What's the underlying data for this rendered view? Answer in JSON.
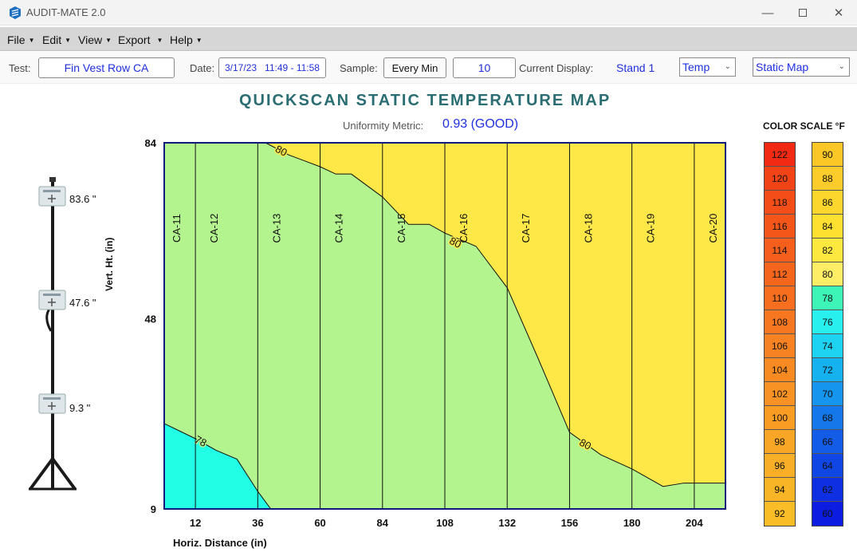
{
  "window": {
    "title": "AUDIT-MATE 2.0"
  },
  "menu": [
    {
      "label": "File"
    },
    {
      "label": "Edit"
    },
    {
      "label": "View"
    },
    {
      "label": "Export"
    },
    {
      "label": "Help"
    }
  ],
  "toolbar": {
    "test_label": "Test:",
    "test_value": "Fin Vest Row CA",
    "date_label": "Date:",
    "date_value": "3/17/23   11:49 - 11:58",
    "sample_label": "Sample:",
    "sample_value": "Every Min",
    "count_value": "10",
    "display_label": "Current Display:",
    "display_value": "Stand 1",
    "measure_value": "Temp",
    "mode_value": "Static Map"
  },
  "map": {
    "title": "QUICKSCAN STATIC TEMPERATURE MAP",
    "uniformity_label": "Uniformity Metric:",
    "uniformity_value": "0.93 (GOOD)"
  },
  "stand": {
    "sensors": [
      {
        "label": "83.6 \""
      },
      {
        "label": "47.6 \""
      },
      {
        "label": "9.3 \""
      }
    ]
  },
  "chart_data": {
    "type": "heatmap",
    "title": "QUICKSCAN STATIC TEMPERATURE MAP",
    "xlabel": "Horiz. Distance (in)",
    "ylabel": "Vert. Ht. (in)",
    "x_ticks": [
      12,
      36,
      60,
      84,
      108,
      132,
      156,
      180,
      204
    ],
    "y_ticks": [
      9,
      48,
      84
    ],
    "xlim": [
      0,
      216
    ],
    "ylim": [
      9,
      84
    ],
    "columns": [
      {
        "label": "CA-11",
        "x": 0
      },
      {
        "label": "CA-12",
        "x": 12
      },
      {
        "label": "CA-13",
        "x": 36
      },
      {
        "label": "CA-14",
        "x": 60
      },
      {
        "label": "CA-15",
        "x": 84
      },
      {
        "label": "CA-16",
        "x": 108
      },
      {
        "label": "CA-17",
        "x": 132
      },
      {
        "label": "CA-18",
        "x": 156
      },
      {
        "label": "CA-19",
        "x": 180
      },
      {
        "label": "CA-20",
        "x": 204
      }
    ],
    "contours": [
      {
        "level": "80",
        "points": [
          [
            39,
            84
          ],
          [
            48,
            81.5
          ],
          [
            60,
            79.1
          ],
          [
            66,
            77.6
          ],
          [
            72,
            77.6
          ],
          [
            84,
            72.9
          ],
          [
            94,
            67.3
          ],
          [
            102,
            67.3
          ],
          [
            108,
            65.5
          ],
          [
            120,
            62.8
          ],
          [
            132,
            54.3
          ],
          [
            144,
            39.7
          ],
          [
            156,
            24.7
          ],
          [
            168,
            20.1
          ],
          [
            180,
            17.2
          ],
          [
            192,
            13.6
          ],
          [
            200,
            14.3
          ],
          [
            216,
            14.3
          ]
        ],
        "labels": [
          [
            45,
            82.3
          ],
          [
            112,
            63.5
          ],
          [
            162,
            22.2
          ]
        ]
      },
      {
        "level": "78",
        "points": [
          [
            0,
            26.5
          ],
          [
            12,
            23.4
          ],
          [
            20,
            21
          ],
          [
            28,
            19.2
          ],
          [
            36,
            12.6
          ],
          [
            41,
            9
          ]
        ],
        "labels": [
          [
            14,
            22.8
          ]
        ]
      }
    ],
    "regions": [
      {
        "range": "78-80",
        "color": "#b3f48e"
      },
      {
        "range": "80-82",
        "color": "#fde848"
      },
      {
        "range": "76-78",
        "color": "#22fde6"
      }
    ]
  },
  "color_scale": {
    "title": "COLOR SCALE  °F",
    "left": [
      {
        "value": "122",
        "color": "#f22a14"
      },
      {
        "value": "120",
        "color": "#f24316"
      },
      {
        "value": "118",
        "color": "#f44d18"
      },
      {
        "value": "116",
        "color": "#f4561a"
      },
      {
        "value": "114",
        "color": "#f55e1b"
      },
      {
        "value": "112",
        "color": "#f5651c"
      },
      {
        "value": "110",
        "color": "#f66e1e"
      },
      {
        "value": "108",
        "color": "#f6771f"
      },
      {
        "value": "106",
        "color": "#f78221"
      },
      {
        "value": "104",
        "color": "#f78b22"
      },
      {
        "value": "102",
        "color": "#f89224"
      },
      {
        "value": "100",
        "color": "#f89c24"
      },
      {
        "value": "98",
        "color": "#f8a625"
      },
      {
        "value": "96",
        "color": "#f8ae26"
      },
      {
        "value": "94",
        "color": "#f8b627"
      },
      {
        "value": "92",
        "color": "#f9bd28"
      }
    ],
    "right": [
      {
        "value": "90",
        "color": "#fbc726"
      },
      {
        "value": "88",
        "color": "#fccc2a"
      },
      {
        "value": "86",
        "color": "#fcd62c"
      },
      {
        "value": "84",
        "color": "#fde030"
      },
      {
        "value": "82",
        "color": "#fde840"
      },
      {
        "value": "80",
        "color": "#fdee66"
      },
      {
        "value": "78",
        "color": "#3ef5b8"
      },
      {
        "value": "76",
        "color": "#28f0ee"
      },
      {
        "value": "74",
        "color": "#1ed2f2"
      },
      {
        "value": "72",
        "color": "#16b2f0"
      },
      {
        "value": "70",
        "color": "#1595ee"
      },
      {
        "value": "68",
        "color": "#1478ea"
      },
      {
        "value": "66",
        "color": "#125ce8"
      },
      {
        "value": "64",
        "color": "#1046e4"
      },
      {
        "value": "62",
        "color": "#0e30e2"
      },
      {
        "value": "60",
        "color": "#0c1ce0"
      }
    ]
  }
}
